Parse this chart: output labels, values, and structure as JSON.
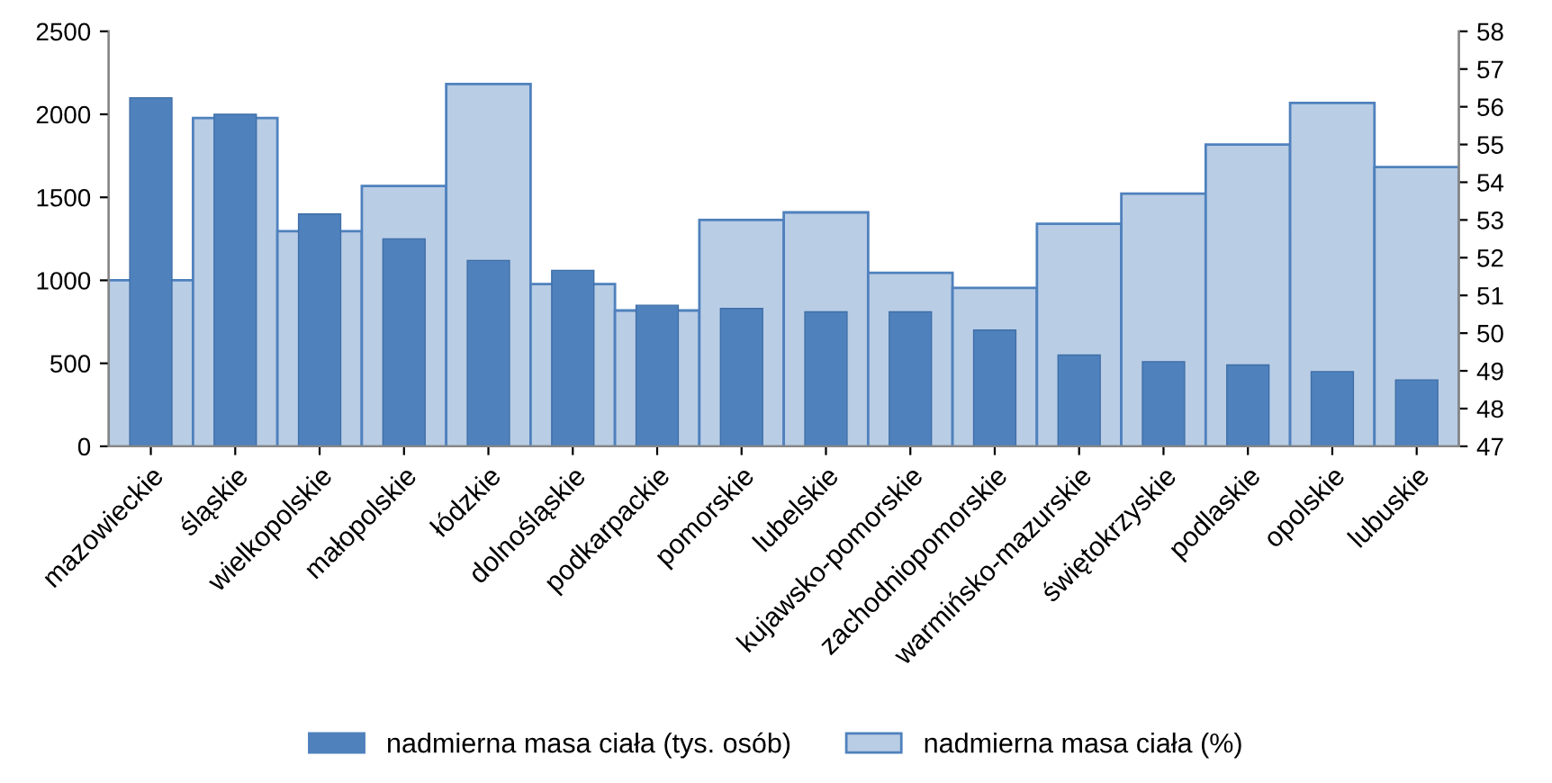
{
  "chart_data": {
    "type": "bar",
    "categories": [
      "mazowieckie",
      "śląskie",
      "wielkopolskie",
      "małopolskie",
      "łódzkie",
      "dolnośląskie",
      "podkarpackie",
      "pomorskie",
      "lubelskie",
      "kujawsko-pomorskie",
      "zachodniopomorskie",
      "warmińsko-mazurskie",
      "świętokrzyskie",
      "podlaskie",
      "opolskie",
      "lubuskie"
    ],
    "series": [
      {
        "name": "nadmierna masa ciała (%)",
        "color": "#b9cde5",
        "axis": "y2",
        "values": [
          51.4,
          55.7,
          52.7,
          53.9,
          56.6,
          51.3,
          50.6,
          53.0,
          53.2,
          51.6,
          51.2,
          52.9,
          53.7,
          55.0,
          56.1,
          54.4
        ]
      },
      {
        "name": "nadmierna masa ciała (tys. osób)",
        "color": "#4f81bd",
        "values": [
          2100,
          2000,
          1400,
          1250,
          1120,
          1060,
          850,
          830,
          810,
          810,
          700,
          550,
          510,
          490,
          450,
          400
        ]
      }
    ],
    "ylim": [
      0,
      2500
    ],
    "yticks": [
      0,
      500,
      1000,
      1500,
      2000,
      2500
    ],
    "y2lim": [
      47,
      58
    ],
    "y2ticks": [
      47,
      48,
      49,
      50,
      51,
      52,
      53,
      54,
      55,
      56,
      57,
      58
    ],
    "grid": false,
    "legend": "bottom"
  }
}
